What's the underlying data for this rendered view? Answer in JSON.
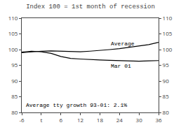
{
  "chart_data": {
    "type": "line",
    "title": "Index 100 = 1st month of recession",
    "x": [
      -6,
      -3,
      0,
      3,
      6,
      9,
      12,
      15,
      18,
      21,
      24,
      27,
      30,
      33,
      36
    ],
    "series": [
      {
        "name": "Average",
        "color": "#000000",
        "values": [
          99.0,
          99.3,
          99.5,
          99.6,
          99.5,
          99.3,
          99.3,
          99.5,
          99.7,
          100.0,
          100.3,
          100.7,
          101.1,
          101.6,
          102.3
        ]
      },
      {
        "name": "Mar 01",
        "color": "#000000",
        "values": [
          99.2,
          99.5,
          99.3,
          98.8,
          97.8,
          97.2,
          97.0,
          96.8,
          96.7,
          96.6,
          96.5,
          96.4,
          96.3,
          96.4,
          96.5
        ]
      }
    ],
    "xlim": [
      -6,
      36
    ],
    "xticks": [
      -6,
      {
        "value": 0,
        "label": "t"
      },
      6,
      12,
      18,
      24,
      30,
      36
    ],
    "ylim": [
      80,
      110
    ],
    "yticks": [
      80,
      85,
      90,
      95,
      100,
      105,
      110
    ],
    "y2lim": [
      80,
      110
    ],
    "y2ticks": [
      80,
      85,
      90,
      95,
      100,
      105,
      110
    ],
    "annotations": [
      "Average tty growth 93-01: 2.1%"
    ],
    "grid": false
  }
}
